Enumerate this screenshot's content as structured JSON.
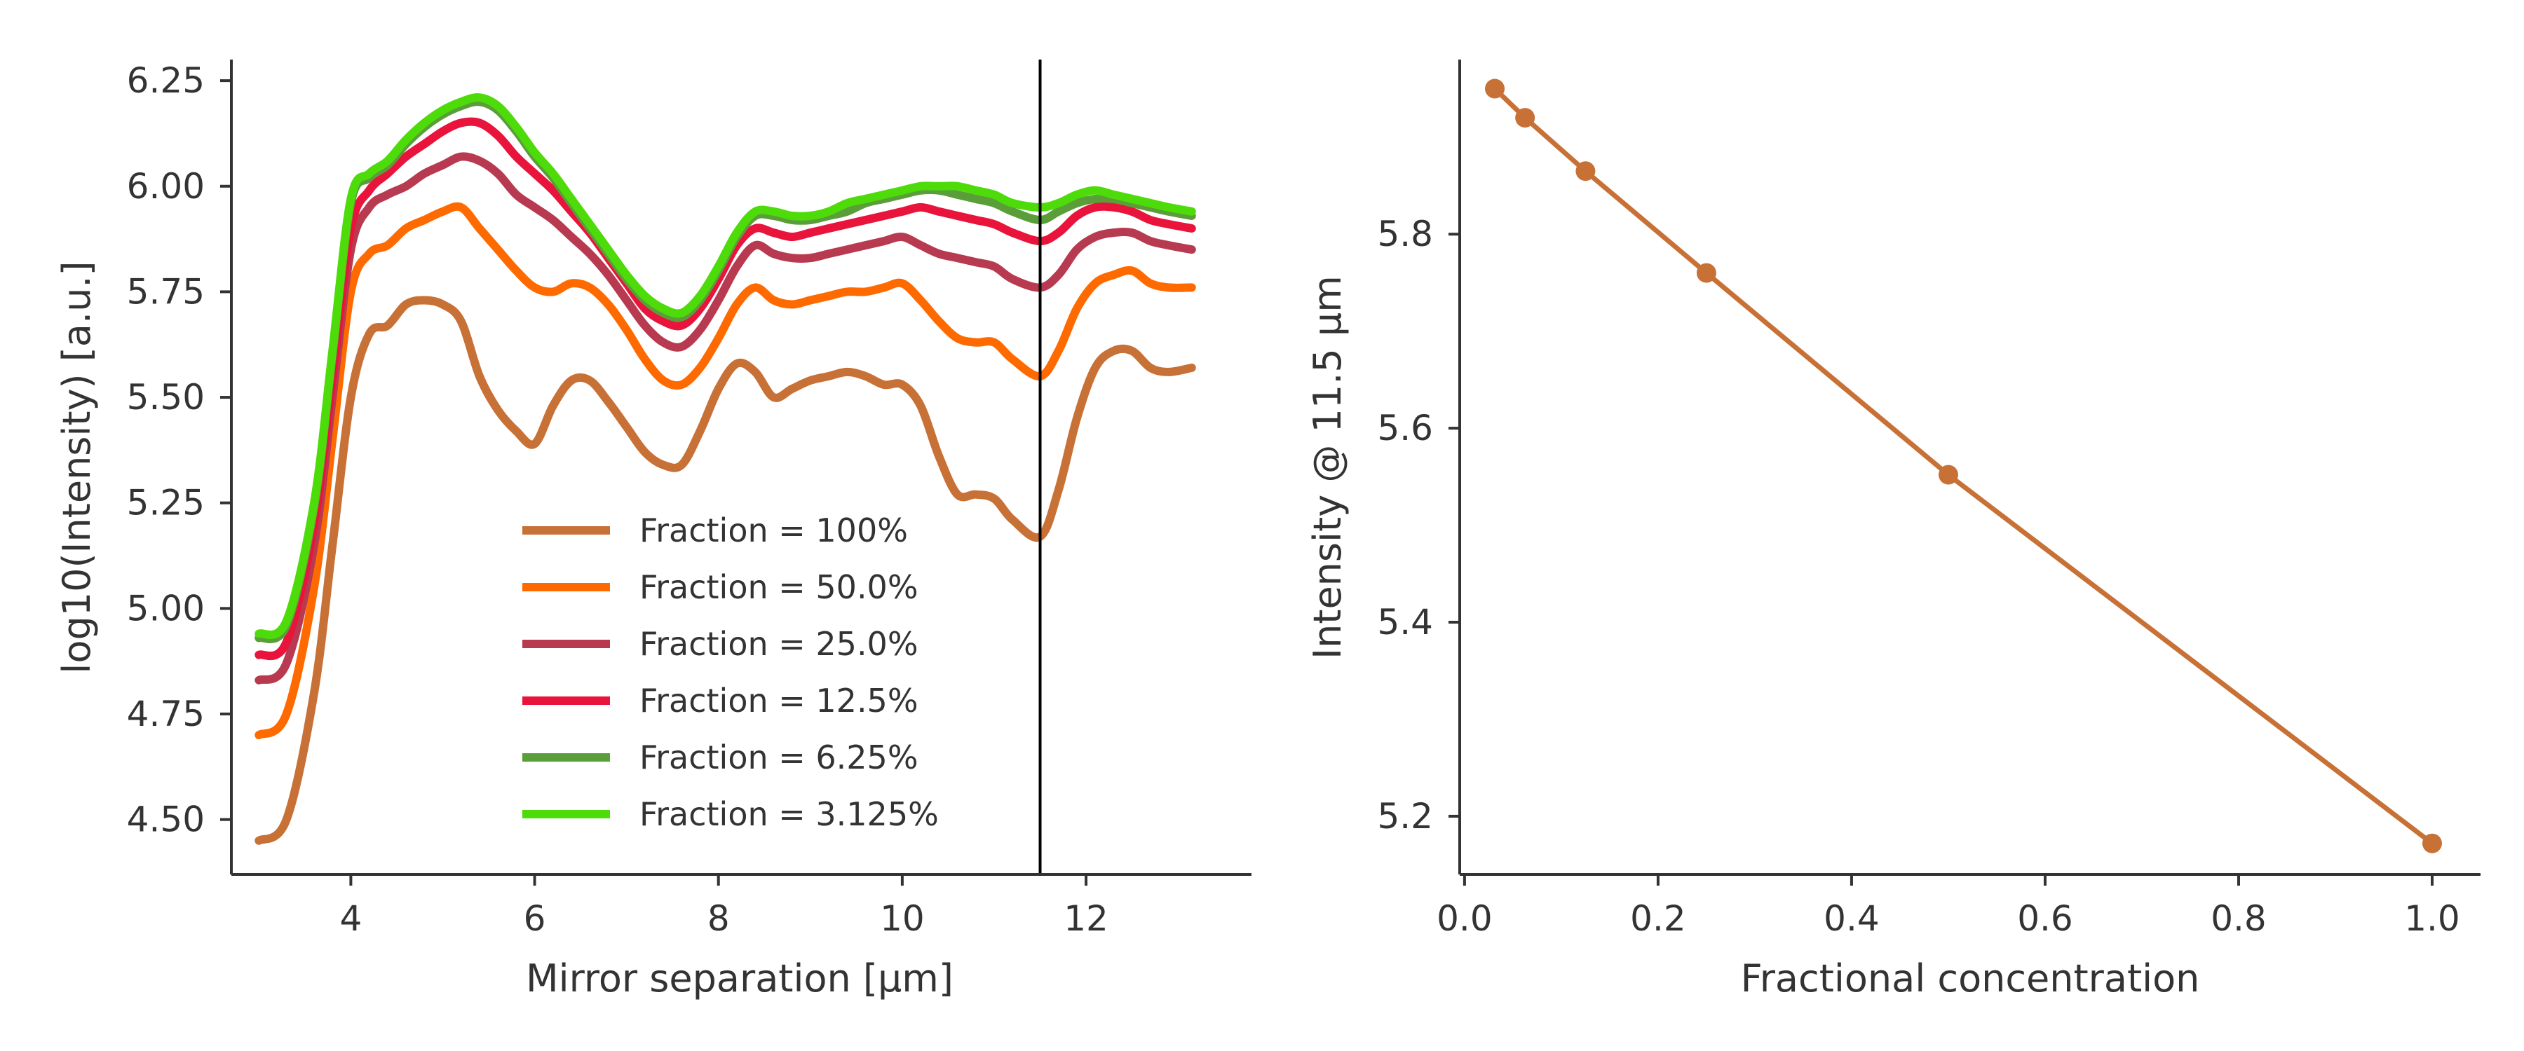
{
  "chart_data": [
    {
      "type": "line",
      "xlabel": "Mirror separation [μm]",
      "ylabel": "log10(Intensity) [a.u.]",
      "xlim": [
        2.7,
        13.8
      ],
      "ylim": [
        4.37,
        6.3
      ],
      "xticks": [
        4,
        6,
        8,
        10,
        12
      ],
      "yticks": [
        4.5,
        4.75,
        5.0,
        5.25,
        5.5,
        5.75,
        6.0,
        6.25
      ],
      "ytick_labels": [
        "4.50",
        "4.75",
        "5.00",
        "5.25",
        "5.50",
        "5.75",
        "6.00",
        "6.25"
      ],
      "vline_x": 11.5,
      "legend_placement": "lower center",
      "x": [
        3.0,
        3.3,
        3.6,
        3.8,
        4.0,
        4.2,
        4.4,
        4.6,
        4.8,
        5.0,
        5.2,
        5.4,
        5.6,
        5.8,
        6.0,
        6.2,
        6.4,
        6.6,
        6.8,
        7.0,
        7.2,
        7.4,
        7.6,
        7.8,
        8.0,
        8.2,
        8.4,
        8.6,
        8.8,
        9.0,
        9.2,
        9.4,
        9.6,
        9.8,
        10.0,
        10.2,
        10.4,
        10.6,
        10.8,
        11.0,
        11.2,
        11.5,
        11.7,
        11.9,
        12.1,
        12.3,
        12.5,
        12.7,
        12.9,
        13.15
      ],
      "series": [
        {
          "name": "Fraction = 100%",
          "color": "#c87137",
          "values": [
            4.45,
            4.5,
            4.8,
            5.15,
            5.5,
            5.65,
            5.67,
            5.72,
            5.73,
            5.72,
            5.68,
            5.55,
            5.47,
            5.42,
            5.39,
            5.48,
            5.54,
            5.54,
            5.49,
            5.43,
            5.37,
            5.34,
            5.34,
            5.42,
            5.52,
            5.58,
            5.56,
            5.5,
            5.52,
            5.54,
            5.55,
            5.56,
            5.55,
            5.53,
            5.53,
            5.48,
            5.36,
            5.27,
            5.27,
            5.26,
            5.21,
            5.17,
            5.28,
            5.45,
            5.57,
            5.61,
            5.61,
            5.57,
            5.56,
            5.57
          ]
        },
        {
          "name": "Fraction = 50.0%",
          "color": "#ff6a00",
          "values": [
            4.7,
            4.75,
            5.05,
            5.4,
            5.75,
            5.84,
            5.86,
            5.9,
            5.92,
            5.94,
            5.95,
            5.9,
            5.85,
            5.8,
            5.76,
            5.75,
            5.77,
            5.76,
            5.72,
            5.66,
            5.59,
            5.54,
            5.53,
            5.57,
            5.64,
            5.72,
            5.76,
            5.73,
            5.72,
            5.73,
            5.74,
            5.75,
            5.75,
            5.76,
            5.77,
            5.73,
            5.68,
            5.64,
            5.63,
            5.63,
            5.59,
            5.55,
            5.61,
            5.71,
            5.77,
            5.79,
            5.8,
            5.77,
            5.76,
            5.76
          ]
        },
        {
          "name": "Fraction = 25.0%",
          "color": "#b83a50",
          "values": [
            4.83,
            4.87,
            5.15,
            5.5,
            5.85,
            5.95,
            5.98,
            6.0,
            6.03,
            6.05,
            6.07,
            6.06,
            6.03,
            5.98,
            5.95,
            5.92,
            5.88,
            5.84,
            5.79,
            5.73,
            5.67,
            5.63,
            5.62,
            5.66,
            5.73,
            5.81,
            5.86,
            5.84,
            5.83,
            5.83,
            5.84,
            5.85,
            5.86,
            5.87,
            5.88,
            5.86,
            5.84,
            5.83,
            5.82,
            5.81,
            5.78,
            5.76,
            5.79,
            5.85,
            5.88,
            5.89,
            5.89,
            5.87,
            5.86,
            5.85
          ]
        },
        {
          "name": "Fraction = 12.5%",
          "color": "#e8143c",
          "values": [
            4.89,
            4.92,
            5.2,
            5.55,
            5.9,
            5.99,
            6.03,
            6.07,
            6.1,
            6.13,
            6.15,
            6.15,
            6.12,
            6.07,
            6.03,
            5.99,
            5.94,
            5.89,
            5.83,
            5.77,
            5.71,
            5.68,
            5.67,
            5.71,
            5.78,
            5.86,
            5.9,
            5.89,
            5.88,
            5.89,
            5.9,
            5.91,
            5.92,
            5.93,
            5.94,
            5.95,
            5.94,
            5.93,
            5.92,
            5.91,
            5.89,
            5.87,
            5.89,
            5.93,
            5.95,
            5.95,
            5.94,
            5.92,
            5.91,
            5.9
          ]
        },
        {
          "name": "Fraction = 6.25%",
          "color": "#5a9e3a",
          "values": [
            4.93,
            4.96,
            5.24,
            5.6,
            5.96,
            6.02,
            6.05,
            6.1,
            6.14,
            6.17,
            6.19,
            6.2,
            6.18,
            6.13,
            6.07,
            6.02,
            5.96,
            5.9,
            5.84,
            5.78,
            5.73,
            5.7,
            5.69,
            5.73,
            5.8,
            5.88,
            5.93,
            5.93,
            5.92,
            5.92,
            5.93,
            5.94,
            5.96,
            5.97,
            5.98,
            5.99,
            5.99,
            5.98,
            5.97,
            5.96,
            5.94,
            5.92,
            5.94,
            5.96,
            5.97,
            5.97,
            5.96,
            5.95,
            5.94,
            5.93
          ]
        },
        {
          "name": "Fraction = 3.125%",
          "color": "#4ddc0a",
          "values": [
            4.94,
            4.97,
            5.25,
            5.61,
            5.97,
            6.03,
            6.06,
            6.11,
            6.15,
            6.18,
            6.2,
            6.21,
            6.19,
            6.14,
            6.08,
            6.03,
            5.97,
            5.91,
            5.85,
            5.79,
            5.74,
            5.71,
            5.7,
            5.74,
            5.81,
            5.89,
            5.94,
            5.94,
            5.93,
            5.93,
            5.94,
            5.96,
            5.97,
            5.98,
            5.99,
            6.0,
            6.0,
            6.0,
            5.99,
            5.98,
            5.96,
            5.95,
            5.96,
            5.98,
            5.99,
            5.98,
            5.97,
            5.96,
            5.95,
            5.94
          ]
        }
      ]
    },
    {
      "type": "line",
      "xlabel": "Fractional concentration",
      "ylabel": "Intensity @ 11.5 μm",
      "xlim": [
        -0.005,
        1.05
      ],
      "ylim": [
        5.14,
        5.98
      ],
      "xticks": [
        0.0,
        0.2,
        0.4,
        0.6,
        0.8,
        1.0
      ],
      "xtick_labels": [
        "0.0",
        "0.2",
        "0.4",
        "0.6",
        "0.8",
        "1.0"
      ],
      "yticks": [
        5.2,
        5.4,
        5.6,
        5.8
      ],
      "ytick_labels": [
        "5.2",
        "5.4",
        "5.6",
        "5.8"
      ],
      "series": [
        {
          "color": "#c87137",
          "x": [
            0.03125,
            0.0625,
            0.125,
            0.25,
            0.5,
            1.0
          ],
          "values": [
            5.95,
            5.92,
            5.865,
            5.76,
            5.552,
            5.172
          ]
        }
      ]
    }
  ]
}
